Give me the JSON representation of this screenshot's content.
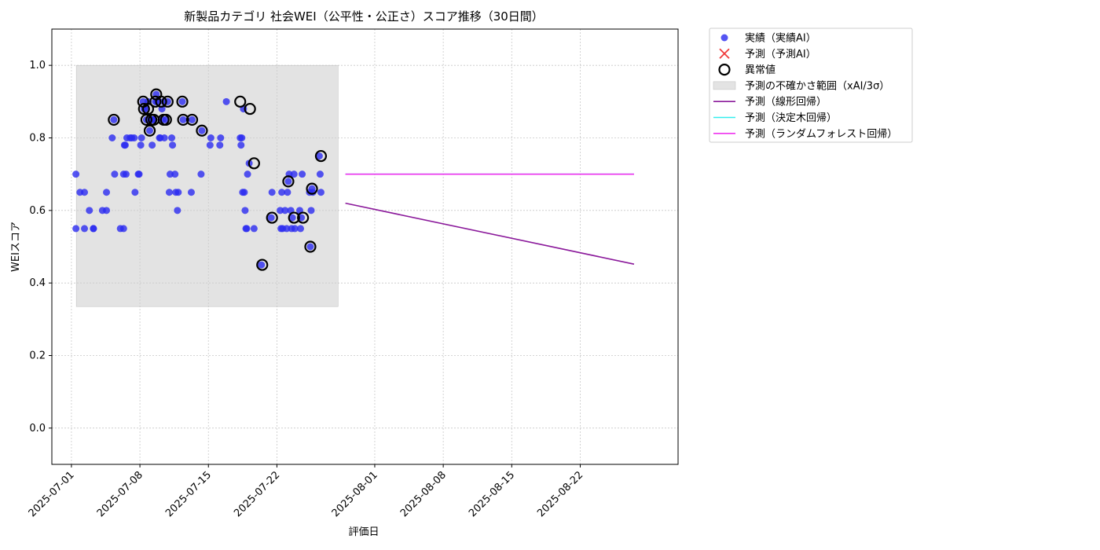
{
  "chart_data": {
    "type": "scatter",
    "title": "新製品カテゴリ 社会WEI（公平性・公正さ）スコア推移（30日間）",
    "xlabel": "評価日",
    "ylabel": "WEIスコア",
    "xlim": [
      "2025-06-29",
      "2025-09-01"
    ],
    "ylim": [
      -0.1,
      1.1
    ],
    "x_ticks": [
      "2025-07-01",
      "2025-07-08",
      "2025-07-15",
      "2025-07-22",
      "2025-08-01",
      "2025-08-08",
      "2025-08-15",
      "2025-08-22"
    ],
    "y_ticks": [
      "0.0",
      "0.2",
      "0.4",
      "0.6",
      "0.8",
      "1.0"
    ],
    "grid": true,
    "legend_position": "outside-upper-right",
    "legend": [
      {
        "label": "実績（実績AI）",
        "kind": "dot",
        "color": "#2b2bf0"
      },
      {
        "label": "予測（予測AI）",
        "kind": "cross",
        "color": "#f03c3c"
      },
      {
        "label": "異常値",
        "kind": "ring",
        "color": "#000000"
      },
      {
        "label": "予測の不確かさ範囲（xAI/3σ）",
        "kind": "band",
        "color": "#cccccc"
      },
      {
        "label": "予測（線形回帰）",
        "kind": "line",
        "color": "#8b1a9b"
      },
      {
        "label": "予測（決定木回帰）",
        "kind": "line",
        "color": "#33eeee"
      },
      {
        "label": "予測（ランダムフォレスト回帰）",
        "kind": "line",
        "color": "#ee33ee"
      }
    ],
    "uncertainty_band": {
      "x": [
        "2025-07-01T12:00",
        "2025-07-28T06:00"
      ],
      "y": [
        0.335,
        1.0
      ]
    },
    "series": [
      {
        "name": "実績（実績AI）",
        "color": "#2b2bf0",
        "points": [
          [
            "2025-07-01T11:00",
            0.7
          ],
          [
            "2025-07-01T11:00",
            0.55
          ],
          [
            "2025-07-01T21:00",
            0.65
          ],
          [
            "2025-07-02T08:00",
            0.65
          ],
          [
            "2025-07-02T08:00",
            0.55
          ],
          [
            "2025-07-02T20:00",
            0.6
          ],
          [
            "2025-07-03T06:00",
            0.55
          ],
          [
            "2025-07-03T06:00",
            0.55
          ],
          [
            "2025-07-04T04:00",
            0.6
          ],
          [
            "2025-07-04T14:00",
            0.65
          ],
          [
            "2025-07-04T14:00",
            0.6
          ],
          [
            "2025-07-05T04:00",
            0.8
          ],
          [
            "2025-07-05T08:00",
            0.85
          ],
          [
            "2025-07-05T10:00",
            0.7
          ],
          [
            "2025-07-06T00:00",
            0.55
          ],
          [
            "2025-07-06T08:00",
            0.55
          ],
          [
            "2025-07-06T08:00",
            0.7
          ],
          [
            "2025-07-06T10:00",
            0.78
          ],
          [
            "2025-07-06T12:00",
            0.78
          ],
          [
            "2025-07-06T14:00",
            0.7
          ],
          [
            "2025-07-06T16:00",
            0.8
          ],
          [
            "2025-07-07T00:00",
            0.8
          ],
          [
            "2025-07-07T04:00",
            0.8
          ],
          [
            "2025-07-07T10:00",
            0.8
          ],
          [
            "2025-07-07T12:00",
            0.65
          ],
          [
            "2025-07-07T20:00",
            0.7
          ],
          [
            "2025-07-07T22:00",
            0.7
          ],
          [
            "2025-07-08T02:00",
            0.78
          ],
          [
            "2025-07-08T04:00",
            0.8
          ],
          [
            "2025-07-08T08:00",
            0.9
          ],
          [
            "2025-07-08T10:00",
            0.88
          ],
          [
            "2025-07-08T14:00",
            0.88
          ],
          [
            "2025-07-08T16:00",
            0.85
          ],
          [
            "2025-07-08T20:00",
            0.9
          ],
          [
            "2025-07-09T00:00",
            0.82
          ],
          [
            "2025-07-09T04:00",
            0.85
          ],
          [
            "2025-07-09T06:00",
            0.78
          ],
          [
            "2025-07-09T08:00",
            0.85
          ],
          [
            "2025-07-09T10:00",
            0.85
          ],
          [
            "2025-07-09T14:00",
            0.9
          ],
          [
            "2025-07-09T16:00",
            0.92
          ],
          [
            "2025-07-09T18:00",
            0.9
          ],
          [
            "2025-07-10T00:00",
            0.8
          ],
          [
            "2025-07-10T02:00",
            0.8
          ],
          [
            "2025-07-10T06:00",
            0.88
          ],
          [
            "2025-07-10T08:00",
            0.85
          ],
          [
            "2025-07-10T10:00",
            0.9
          ],
          [
            "2025-07-10T12:00",
            0.8
          ],
          [
            "2025-07-10T16:00",
            0.85
          ],
          [
            "2025-07-10T20:00",
            0.9
          ],
          [
            "2025-07-11T00:00",
            0.65
          ],
          [
            "2025-07-11T02:00",
            0.7
          ],
          [
            "2025-07-11T06:00",
            0.8
          ],
          [
            "2025-07-11T08:00",
            0.78
          ],
          [
            "2025-07-11T14:00",
            0.7
          ],
          [
            "2025-07-11T16:00",
            0.65
          ],
          [
            "2025-07-11T20:00",
            0.6
          ],
          [
            "2025-07-11T22:00",
            0.65
          ],
          [
            "2025-07-12T08:00",
            0.9
          ],
          [
            "2025-07-12T10:00",
            0.85
          ],
          [
            "2025-07-13T06:00",
            0.65
          ],
          [
            "2025-07-13T08:00",
            0.85
          ],
          [
            "2025-07-14T06:00",
            0.7
          ],
          [
            "2025-07-14T08:00",
            0.82
          ],
          [
            "2025-07-15T04:00",
            0.78
          ],
          [
            "2025-07-15T06:00",
            0.8
          ],
          [
            "2025-07-16T04:00",
            0.78
          ],
          [
            "2025-07-16T06:00",
            0.8
          ],
          [
            "2025-07-16T20:00",
            0.9
          ],
          [
            "2025-07-18T06:00",
            0.8
          ],
          [
            "2025-07-18T08:00",
            0.78
          ],
          [
            "2025-07-18T10:00",
            0.8
          ],
          [
            "2025-07-18T12:00",
            0.65
          ],
          [
            "2025-07-18T14:00",
            0.88
          ],
          [
            "2025-07-18T16:00",
            0.65
          ],
          [
            "2025-07-18T18:00",
            0.6
          ],
          [
            "2025-07-18T20:00",
            0.55
          ],
          [
            "2025-07-18T22:00",
            0.55
          ],
          [
            "2025-07-19T00:00",
            0.7
          ],
          [
            "2025-07-19T04:00",
            0.73
          ],
          [
            "2025-07-19T16:00",
            0.55
          ],
          [
            "2025-07-20T10:00",
            0.45
          ],
          [
            "2025-07-21T10:00",
            0.58
          ],
          [
            "2025-07-21T12:00",
            0.65
          ],
          [
            "2025-07-22T08:00",
            0.6
          ],
          [
            "2025-07-22T10:00",
            0.55
          ],
          [
            "2025-07-22T12:00",
            0.65
          ],
          [
            "2025-07-22T14:00",
            0.55
          ],
          [
            "2025-07-22T20:00",
            0.6
          ],
          [
            "2025-07-23T00:00",
            0.55
          ],
          [
            "2025-07-23T02:00",
            0.65
          ],
          [
            "2025-07-23T04:00",
            0.68
          ],
          [
            "2025-07-23T06:00",
            0.7
          ],
          [
            "2025-07-23T10:00",
            0.6
          ],
          [
            "2025-07-23T12:00",
            0.55
          ],
          [
            "2025-07-23T14:00",
            0.58
          ],
          [
            "2025-07-23T18:00",
            0.7
          ],
          [
            "2025-07-23T20:00",
            0.55
          ],
          [
            "2025-07-24T08:00",
            0.6
          ],
          [
            "2025-07-24T10:00",
            0.55
          ],
          [
            "2025-07-24T12:00",
            0.58
          ],
          [
            "2025-07-24T14:00",
            0.7
          ],
          [
            "2025-07-25T08:00",
            0.65
          ],
          [
            "2025-07-25T10:00",
            0.5
          ],
          [
            "2025-07-25T12:00",
            0.6
          ],
          [
            "2025-07-25T14:00",
            0.66
          ],
          [
            "2025-07-25T16:00",
            0.65
          ],
          [
            "2025-07-26T08:00",
            0.75
          ],
          [
            "2025-07-26T10:00",
            0.7
          ],
          [
            "2025-07-26T12:00",
            0.65
          ]
        ]
      },
      {
        "name": "異常値",
        "color": "#000000",
        "points": [
          [
            "2025-07-05T08:00",
            0.85
          ],
          [
            "2025-07-08T08:00",
            0.9
          ],
          [
            "2025-07-08T10:00",
            0.88
          ],
          [
            "2025-07-08T16:00",
            0.85
          ],
          [
            "2025-07-08T20:00",
            0.88
          ],
          [
            "2025-07-09T00:00",
            0.82
          ],
          [
            "2025-07-09T04:00",
            0.85
          ],
          [
            "2025-07-09T10:00",
            0.85
          ],
          [
            "2025-07-09T14:00",
            0.9
          ],
          [
            "2025-07-09T16:00",
            0.92
          ],
          [
            "2025-07-10T04:00",
            0.9
          ],
          [
            "2025-07-10T10:00",
            0.85
          ],
          [
            "2025-07-10T16:00",
            0.85
          ],
          [
            "2025-07-10T20:00",
            0.9
          ],
          [
            "2025-07-12T08:00",
            0.9
          ],
          [
            "2025-07-12T10:00",
            0.85
          ],
          [
            "2025-07-13T08:00",
            0.85
          ],
          [
            "2025-07-14T08:00",
            0.82
          ],
          [
            "2025-07-18T06:00",
            0.9
          ],
          [
            "2025-07-19T06:00",
            0.88
          ],
          [
            "2025-07-19T16:00",
            0.73
          ],
          [
            "2025-07-20T12:00",
            0.45
          ],
          [
            "2025-07-21T12:00",
            0.58
          ],
          [
            "2025-07-23T04:00",
            0.68
          ],
          [
            "2025-07-23T18:00",
            0.58
          ],
          [
            "2025-07-24T16:00",
            0.58
          ],
          [
            "2025-07-25T10:00",
            0.5
          ],
          [
            "2025-07-25T14:00",
            0.66
          ],
          [
            "2025-07-26T12:00",
            0.75
          ]
        ]
      }
    ],
    "lines": [
      {
        "name": "予測（線形回帰）",
        "color": "#8b1a9b",
        "points": [
          [
            "2025-07-29T00:00",
            0.62
          ],
          [
            "2025-08-27T12:00",
            0.452
          ]
        ]
      },
      {
        "name": "予測（決定木回帰）",
        "color": "#33eeee",
        "points": [
          [
            "2025-07-29T00:00",
            0.7
          ],
          [
            "2025-08-27T12:00",
            0.7
          ]
        ]
      },
      {
        "name": "予測（ランダムフォレスト回帰）",
        "color": "#ee33ee",
        "points": [
          [
            "2025-07-29T00:00",
            0.7
          ],
          [
            "2025-08-27T12:00",
            0.7
          ]
        ]
      }
    ]
  }
}
